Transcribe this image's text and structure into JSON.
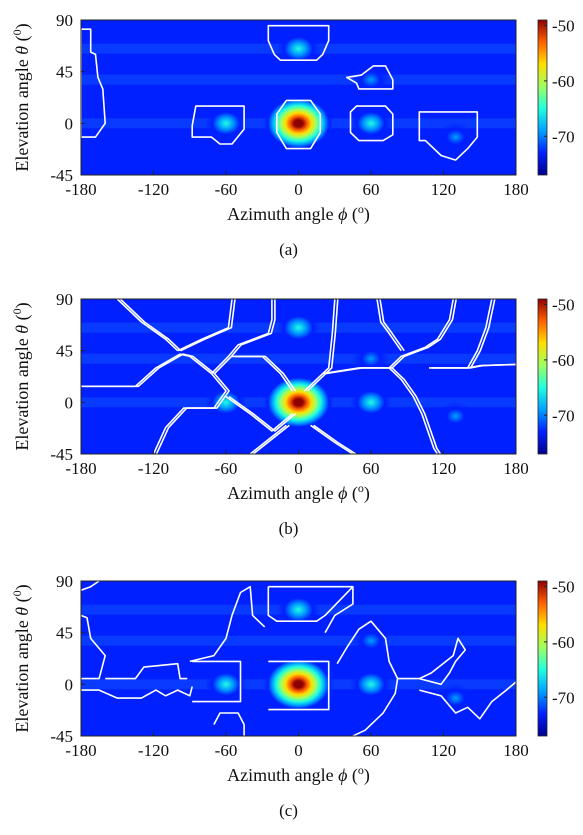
{
  "chart_data": [
    {
      "type": "heatmap",
      "caption": "(a)",
      "xlabel": "Azimuth angle",
      "xlabel_symbol": "ϕ",
      "xlabel_unit": "(o)",
      "ylabel": "Elevation angle",
      "ylabel_symbol": "θ",
      "ylabel_unit": "(0)",
      "xlim": [
        -180,
        180
      ],
      "ylim": [
        -45,
        90
      ],
      "xticks": [
        "-180",
        "-120",
        "-60",
        "0",
        "60",
        "120",
        "180"
      ],
      "yticks": [
        "90",
        "45",
        "0",
        "-45"
      ],
      "colorbar": {
        "range": [
          -77,
          -49
        ],
        "ticks": [
          "-50",
          "-60",
          "-70"
        ]
      },
      "colormap": [
        "#00008f",
        "#0020ff",
        "#00a0ff",
        "#20ffdf",
        "#9fff60",
        "#ffdf00",
        "#ff6000",
        "#8f0000"
      ],
      "peaks": [
        {
          "az": 0,
          "el": 0,
          "level_dB": -49
        },
        {
          "az": 0,
          "el": 65,
          "level_dB": -68
        },
        {
          "az": -60,
          "el": 0,
          "level_dB": -69
        },
        {
          "az": 60,
          "el": 0,
          "level_dB": -69
        },
        {
          "az": 60,
          "el": 38,
          "level_dB": -72
        },
        {
          "az": 130,
          "el": -12,
          "level_dB": -73
        }
      ],
      "regions": [
        [
          [
            -180,
            82
          ],
          [
            -172,
            82
          ],
          [
            -172,
            62
          ],
          [
            -168,
            60
          ],
          [
            -166,
            40
          ],
          [
            -162,
            30
          ],
          [
            -160,
            0
          ],
          [
            -168,
            -12
          ],
          [
            -180,
            -12
          ]
        ],
        [
          [
            -25,
            85
          ],
          [
            25,
            85
          ],
          [
            25,
            72
          ],
          [
            20,
            60
          ],
          [
            15,
            55
          ],
          [
            -15,
            55
          ],
          [
            -20,
            60
          ],
          [
            -25,
            72
          ]
        ],
        [
          [
            -10,
            20
          ],
          [
            10,
            20
          ],
          [
            18,
            8
          ],
          [
            18,
            -8
          ],
          [
            10,
            -22
          ],
          [
            -10,
            -22
          ],
          [
            -18,
            -8
          ],
          [
            -18,
            8
          ]
        ],
        [
          [
            -85,
            15
          ],
          [
            -45,
            15
          ],
          [
            -45,
            -5
          ],
          [
            -55,
            -18
          ],
          [
            -65,
            -18
          ],
          [
            -72,
            -12
          ],
          [
            -88,
            -12
          ],
          [
            -88,
            -2
          ]
        ],
        [
          [
            -185,
            -5
          ],
          [
            -185,
            -5
          ]
        ],
        [
          [
            40,
            40
          ],
          [
            52,
            42
          ],
          [
            62,
            50
          ],
          [
            72,
            50
          ],
          [
            78,
            38
          ],
          [
            78,
            30
          ],
          [
            50,
            30
          ],
          [
            48,
            35
          ]
        ],
        [
          [
            43,
            10
          ],
          [
            48,
            15
          ],
          [
            72,
            15
          ],
          [
            78,
            8
          ],
          [
            78,
            -10
          ],
          [
            70,
            -15
          ],
          [
            50,
            -15
          ],
          [
            43,
            -8
          ]
        ],
        [
          [
            100,
            10
          ],
          [
            148,
            10
          ],
          [
            148,
            -12
          ],
          [
            140,
            -22
          ],
          [
            130,
            -32
          ],
          [
            118,
            -28
          ],
          [
            105,
            -15
          ],
          [
            100,
            -15
          ]
        ]
      ]
    },
    {
      "type": "heatmap",
      "caption": "(b)",
      "xlabel": "Azimuth angle",
      "xlabel_symbol": "ϕ",
      "xlabel_unit": "(o)",
      "ylabel": "Elevation angle",
      "ylabel_symbol": "θ",
      "ylabel_unit": "(0)",
      "xlim": [
        -180,
        180
      ],
      "ylim": [
        -45,
        90
      ],
      "xticks": [
        "-180",
        "-120",
        "-60",
        "0",
        "60",
        "120",
        "180"
      ],
      "yticks": [
        "90",
        "45",
        "0",
        "-45"
      ],
      "colorbar": {
        "range": [
          -77,
          -49
        ],
        "ticks": [
          "-50",
          "-60",
          "-70"
        ]
      },
      "colormap": [
        "#00008f",
        "#0020ff",
        "#00a0ff",
        "#20ffdf",
        "#9fff60",
        "#ffdf00",
        "#ff6000",
        "#8f0000"
      ],
      "peaks": [
        {
          "az": 0,
          "el": 0,
          "level_dB": -49
        },
        {
          "az": 0,
          "el": 65,
          "level_dB": -68
        },
        {
          "az": -60,
          "el": 0,
          "level_dB": -69
        },
        {
          "az": 60,
          "el": 0,
          "level_dB": -69
        },
        {
          "az": 60,
          "el": 38,
          "level_dB": -72
        },
        {
          "az": 130,
          "el": -12,
          "level_dB": -73
        }
      ],
      "regions": [
        [
          [
            -180,
            14
          ],
          [
            -135,
            14
          ],
          [
            -118,
            30
          ],
          [
            -98,
            42
          ],
          [
            -90,
            40
          ],
          [
            -72,
            25
          ],
          [
            -60,
            10
          ],
          [
            -70,
            -5
          ],
          [
            -95,
            -5
          ],
          [
            -110,
            -22
          ],
          [
            -120,
            -45
          ]
        ],
        [
          [
            -150,
            90
          ],
          [
            -130,
            70
          ],
          [
            -110,
            55
          ],
          [
            -100,
            45
          ]
        ],
        [
          [
            -55,
            90
          ],
          [
            -58,
            65
          ],
          [
            -80,
            55
          ],
          [
            -100,
            45
          ]
        ],
        [
          [
            -22,
            90
          ],
          [
            -22,
            72
          ],
          [
            -25,
            60
          ],
          [
            -50,
            50
          ],
          [
            -58,
            40
          ],
          [
            -72,
            25
          ]
        ],
        [
          [
            -55,
            40
          ],
          [
            -30,
            40
          ],
          [
            -15,
            25
          ],
          [
            -5,
            10
          ]
        ],
        [
          [
            -60,
            5
          ],
          [
            -40,
            -10
          ],
          [
            -22,
            -25
          ],
          [
            -5,
            -10
          ]
        ],
        [
          [
            5,
            10
          ],
          [
            20,
            25
          ],
          [
            25,
            30
          ],
          [
            28,
            60
          ],
          [
            30,
            90
          ]
        ],
        [
          [
            10,
            -20
          ],
          [
            30,
            -35
          ],
          [
            45,
            -45
          ]
        ],
        [
          [
            -10,
            -20
          ],
          [
            -28,
            -35
          ],
          [
            -40,
            -45
          ]
        ],
        [
          [
            20,
            25
          ],
          [
            50,
            30
          ],
          [
            75,
            30
          ],
          [
            85,
            20
          ],
          [
            95,
            5
          ],
          [
            102,
            -10
          ],
          [
            112,
            -40
          ],
          [
            115,
            -45
          ]
        ],
        [
          [
            75,
            30
          ],
          [
            85,
            40
          ],
          [
            105,
            48
          ],
          [
            115,
            55
          ],
          [
            125,
            72
          ],
          [
            128,
            90
          ]
        ],
        [
          [
            65,
            90
          ],
          [
            68,
            70
          ],
          [
            75,
            60
          ],
          [
            85,
            45
          ]
        ],
        [
          [
            108,
            30
          ],
          [
            140,
            30
          ],
          [
            150,
            32
          ],
          [
            180,
            33
          ]
        ],
        [
          [
            140,
            30
          ],
          [
            148,
            45
          ],
          [
            155,
            65
          ],
          [
            160,
            90
          ]
        ]
      ]
    },
    {
      "type": "heatmap",
      "caption": "(c)",
      "xlabel": "Azimuth angle",
      "xlabel_symbol": "ϕ",
      "xlabel_unit": "(o)",
      "ylabel": "Elevation angle",
      "ylabel_symbol": "θ",
      "ylabel_unit": "(0)",
      "xlim": [
        -180,
        180
      ],
      "ylim": [
        -45,
        90
      ],
      "xticks": [
        "-180",
        "-120",
        "-60",
        "0",
        "60",
        "120",
        "180"
      ],
      "yticks": [
        "90",
        "45",
        "0",
        "-45"
      ],
      "colorbar": {
        "range": [
          -77,
          -49
        ],
        "ticks": [
          "-50",
          "-60",
          "-70"
        ]
      },
      "colormap": [
        "#00008f",
        "#0020ff",
        "#00a0ff",
        "#20ffdf",
        "#9fff60",
        "#ffdf00",
        "#ff6000",
        "#8f0000"
      ],
      "peaks": [
        {
          "az": 0,
          "el": 0,
          "level_dB": -49
        },
        {
          "az": 0,
          "el": 65,
          "level_dB": -68
        },
        {
          "az": -60,
          "el": 0,
          "level_dB": -69
        },
        {
          "az": 60,
          "el": 0,
          "level_dB": -69
        },
        {
          "az": 60,
          "el": 38,
          "level_dB": -72
        },
        {
          "az": 130,
          "el": -12,
          "level_dB": -73
        }
      ],
      "regions": [
        [
          [
            -180,
            82
          ],
          [
            -172,
            85
          ],
          [
            -165,
            90
          ]
        ],
        [
          [
            -180,
            -5
          ],
          [
            -165,
            -5
          ],
          [
            -150,
            -12
          ],
          [
            -130,
            -12
          ],
          [
            -118,
            -5
          ],
          [
            -110,
            -10
          ],
          [
            -100,
            -5
          ],
          [
            -90,
            -10
          ],
          [
            -88,
            -2
          ]
        ],
        [
          [
            -180,
            5
          ],
          [
            -165,
            5
          ],
          [
            -160,
            25
          ],
          [
            -172,
            40
          ],
          [
            -175,
            58
          ],
          [
            -180,
            60
          ]
        ],
        [
          [
            -160,
            5
          ],
          [
            -135,
            5
          ],
          [
            -128,
            15
          ],
          [
            -100,
            18
          ],
          [
            -98,
            5
          ],
          [
            -92,
            5
          ]
        ],
        [
          [
            -90,
            20
          ],
          [
            -70,
            25
          ],
          [
            -60,
            40
          ],
          [
            -55,
            60
          ],
          [
            -48,
            80
          ],
          [
            -40,
            85
          ],
          [
            -38,
            60
          ],
          [
            -28,
            50
          ]
        ],
        [
          [
            -88,
            20
          ],
          [
            -48,
            20
          ],
          [
            -48,
            -15
          ],
          [
            -88,
            -15
          ]
        ],
        [
          [
            -70,
            -35
          ],
          [
            -65,
            -25
          ],
          [
            -50,
            -25
          ],
          [
            -45,
            -35
          ],
          [
            -45,
            -45
          ]
        ],
        [
          [
            -25,
            85
          ],
          [
            -25,
            60
          ],
          [
            -18,
            55
          ],
          [
            15,
            55
          ],
          [
            22,
            60
          ],
          [
            45,
            85
          ]
        ],
        [
          [
            -25,
            85
          ],
          [
            45,
            85
          ],
          [
            45,
            70
          ],
          [
            30,
            60
          ],
          [
            22,
            45
          ]
        ],
        [
          [
            -25,
            20
          ],
          [
            25,
            20
          ],
          [
            25,
            -22
          ],
          [
            -25,
            -22
          ]
        ],
        [
          [
            32,
            18
          ],
          [
            40,
            32
          ],
          [
            50,
            48
          ],
          [
            60,
            55
          ],
          [
            72,
            40
          ],
          [
            75,
            20
          ],
          [
            82,
            5
          ],
          [
            80,
            -8
          ],
          [
            70,
            -25
          ],
          [
            55,
            -40
          ],
          [
            45,
            -45
          ]
        ],
        [
          [
            82,
            5
          ],
          [
            100,
            5
          ],
          [
            118,
            0
          ],
          [
            125,
            10
          ],
          [
            130,
            20
          ],
          [
            138,
            30
          ],
          [
            132,
            40
          ],
          [
            128,
            25
          ],
          [
            110,
            10
          ],
          [
            100,
            5
          ]
        ],
        [
          [
            100,
            -5
          ],
          [
            118,
            -10
          ],
          [
            130,
            -25
          ],
          [
            140,
            -20
          ],
          [
            150,
            -30
          ],
          [
            160,
            -15
          ],
          [
            172,
            -5
          ],
          [
            180,
            2
          ]
        ]
      ]
    }
  ]
}
